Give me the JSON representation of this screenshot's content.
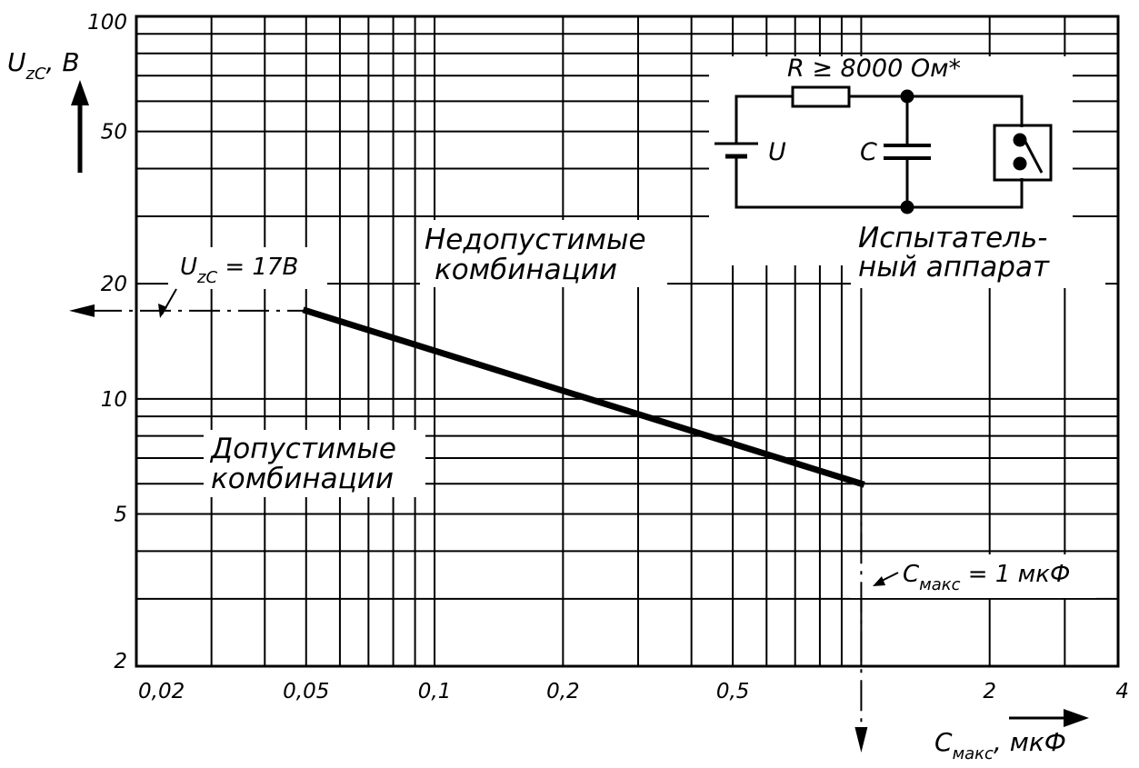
{
  "chart_data": {
    "type": "line",
    "scale": {
      "x": "log",
      "y": "log"
    },
    "grid": true,
    "xlim": [
      0.02,
      4
    ],
    "ylim": [
      2,
      100
    ],
    "x_ticks": [
      "0,02",
      "0,05",
      "0,1",
      "0,2",
      "0,5",
      "2",
      "4"
    ],
    "y_ticks": [
      "2",
      "5",
      "10",
      "20",
      "50",
      "100"
    ],
    "x_tick_values": [
      0.02,
      0.05,
      0.1,
      0.2,
      0.5,
      2,
      4
    ],
    "y_tick_values": [
      2,
      5,
      10,
      20,
      50,
      100
    ],
    "y_axis_label": {
      "main": "U",
      "sub": "zC",
      "unit": ", B"
    },
    "x_axis_label": {
      "main": "C",
      "sub": "макс",
      "unit": ", мкФ"
    },
    "series": [
      {
        "x": [
          0.05,
          1.0
        ],
        "y": [
          17,
          6
        ]
      }
    ],
    "dashed_line_y_value": 17,
    "dashed_line_x_value": 1.0,
    "regions": {
      "forbidden": [
        "Недопустимые",
        "комбинации"
      ],
      "allowed": [
        "Допустимые",
        "комбинации"
      ]
    },
    "annotations": {
      "uzc": {
        "main": "U",
        "sub": "zC",
        "rest": " = 17B"
      },
      "cmax": {
        "main": "C",
        "sub": "макс",
        "rest": " = 1 мкФ"
      }
    },
    "circuit": {
      "resistor_label": "R ≥ 8000 Ом*",
      "source_label": "U",
      "capacitor_label": "C",
      "device_label": [
        "Испытатель-",
        "ный аппарат"
      ]
    }
  }
}
